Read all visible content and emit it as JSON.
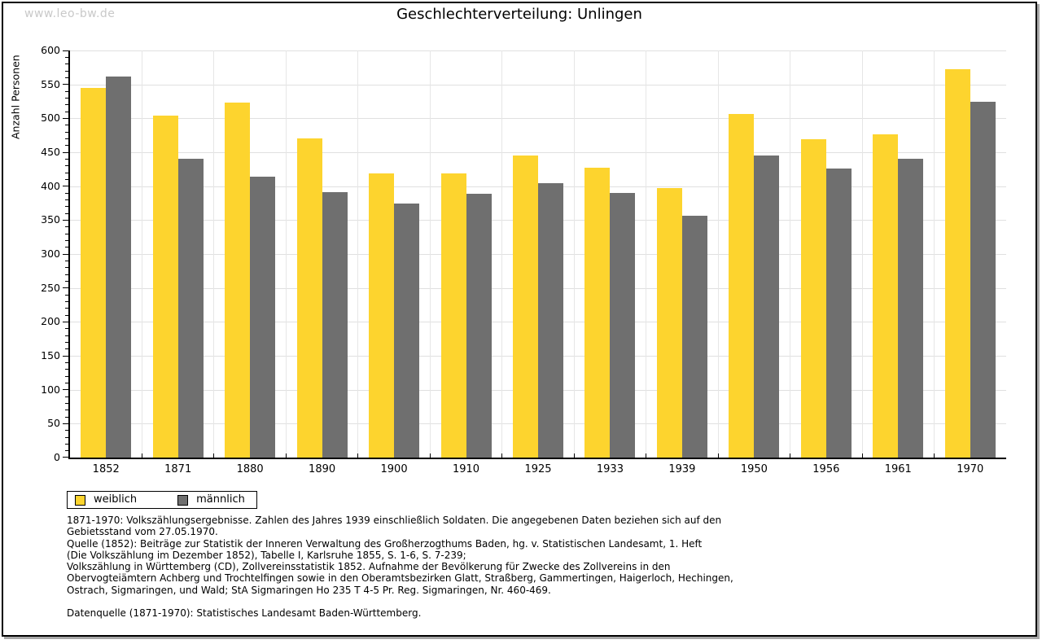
{
  "watermark": "www.leo-bw.de",
  "chart_data": {
    "type": "bar",
    "title": "Geschlechterverteilung: Unlingen",
    "ylabel": "Anzahl Personen",
    "xlabel": "",
    "ylim": [
      0,
      600
    ],
    "ytick_major": 50,
    "ytick_minor": 10,
    "grid": true,
    "legend_position": "below-left",
    "categories": [
      "1852",
      "1871",
      "1880",
      "1890",
      "1900",
      "1910",
      "1925",
      "1933",
      "1939",
      "1950",
      "1956",
      "1961",
      "1970"
    ],
    "series": [
      {
        "name": "weiblich",
        "color": "#FDD42E",
        "values": [
          545,
          504,
          523,
          471,
          419,
          419,
          445,
          427,
          397,
          506,
          469,
          476,
          572
        ]
      },
      {
        "name": "männlich",
        "color": "#6F6F6F",
        "values": [
          562,
          440,
          414,
          391,
          374,
          389,
          405,
          390,
          357,
          445,
          426,
          440,
          524
        ]
      }
    ]
  },
  "colors": {
    "grid": "#e0e0e0",
    "axis": "#000000",
    "watermark": "#c9c9c9",
    "female_bar": "#FDD42E",
    "male_bar": "#6F6F6F"
  },
  "footnotes": {
    "lines": [
      "1871-1970: Volkszählungsergebnisse. Zahlen des Jahres 1939 einschließlich Soldaten. Die angegebenen Daten beziehen sich auf den",
      "Gebietsstand vom 27.05.1970.",
      "Quelle (1852): Beiträge zur Statistik der Inneren Verwaltung des Großherzogthums Baden, hg. v. Statistischen Landesamt, 1. Heft",
      "(Die Volkszählung im Dezember 1852), Tabelle I, Karlsruhe 1855, S. 1-6, S. 7-239;",
      "Volkszählung in Württemberg (CD), Zollvereinsstatistik 1852. Aufnahme der Bevölkerung für Zwecke des Zollvereins in den",
      "Obervogteiämtern Achberg und Trochtelfingen sowie in den Oberamtsbezirken Glatt, Straßberg, Gammertingen, Haigerloch, Hechingen,",
      "Ostrach, Sigmaringen, und Wald; StA Sigmaringen Ho 235 T 4-5 Pr. Reg. Sigmaringen, Nr. 460-469.",
      "",
      "Datenquelle (1871-1970): Statistisches Landesamt Baden-Württemberg."
    ]
  }
}
